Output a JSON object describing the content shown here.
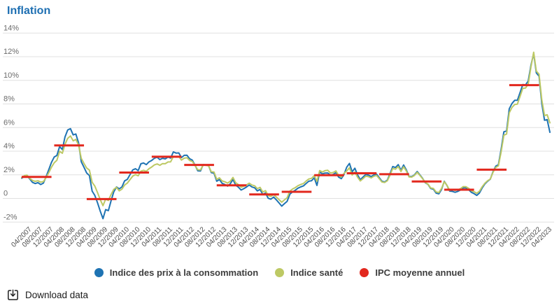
{
  "page": {
    "title": "Inflation"
  },
  "download": {
    "label": "Download data"
  },
  "colors": {
    "title": "#1e6fb2",
    "gridline": "#e0e0e0",
    "y_axis_text": "#6b6b6b",
    "x_axis_text": "#4d4d4d",
    "cpi_line": "#1e73b3",
    "health_line": "#bdc964",
    "annual_average_line": "#e2281e"
  },
  "chart_data": {
    "type": "line",
    "title": "Inflation",
    "x_frequency": "monthly",
    "x_start": "01/2007",
    "x_end": "04/2023",
    "grid": "horizontal",
    "legend_position": "bottom",
    "ylim": [
      -2,
      14
    ],
    "y_ticks": {
      "labels": [
        "14%",
        "12%",
        "10%",
        "8%",
        "6%",
        "4%",
        "2%",
        "0",
        "-2%"
      ],
      "values": [
        14,
        12,
        10,
        8,
        6,
        4,
        2,
        0,
        -2
      ]
    },
    "x_tick_labels": [
      "04/2007",
      "08/2007",
      "12/2007",
      "04/2008",
      "08/2008",
      "12/2008",
      "04/2009",
      "08/2009",
      "12/2009",
      "04/2010",
      "08/2010",
      "12/2010",
      "04/2011",
      "08/2011",
      "12/2011",
      "04/2012",
      "08/2012",
      "12/2012",
      "04/2013",
      "08/2013",
      "12/2013",
      "04/2014",
      "08/2014",
      "12/2014",
      "04/2015",
      "08/2015",
      "12/2015",
      "04/2016",
      "08/2016",
      "12/2016",
      "04/2017",
      "08/2017",
      "12/2017",
      "04/2018",
      "08/2018",
      "12/2018",
      "04/2019",
      "08/2019",
      "12/2019",
      "04/2020",
      "08/2020",
      "12/2020",
      "04/2021",
      "08/2021",
      "12/2021",
      "04/2022",
      "08/2022",
      "12/2022",
      "04/2023"
    ],
    "series": [
      {
        "name": "Indice des prix à la consommation",
        "type": "line",
        "color": "#1e73b3",
        "values": [
          1.71,
          1.87,
          1.93,
          1.65,
          1.36,
          1.26,
          1.34,
          1.18,
          1.3,
          1.83,
          2.44,
          3.06,
          3.51,
          3.64,
          4.39,
          4.14,
          5.21,
          5.8,
          5.91,
          5.38,
          5.46,
          4.71,
          3.1,
          2.63,
          2.15,
          1.94,
          0.62,
          0.26,
          -0.37,
          -1.08,
          -1.71,
          -0.94,
          -1.03,
          -0.19,
          0.56,
          0.97,
          0.81,
          0.98,
          1.49,
          1.62,
          2.02,
          2.41,
          2.52,
          2.35,
          2.94,
          3.0,
          2.86,
          3.1,
          3.22,
          3.4,
          3.49,
          3.29,
          3.4,
          3.35,
          3.5,
          3.42,
          3.94,
          3.84,
          3.85,
          3.46,
          3.65,
          3.66,
          3.36,
          3.24,
          2.81,
          2.34,
          2.32,
          2.86,
          2.84,
          2.77,
          2.18,
          2.14,
          1.46,
          1.6,
          1.28,
          1.18,
          1.05,
          1.24,
          1.61,
          1.12,
          0.96,
          0.71,
          0.83,
          0.97,
          1.14,
          0.97,
          0.9,
          0.64,
          0.76,
          0.34,
          0.47,
          0.02,
          -0.06,
          0.12,
          -0.11,
          -0.38,
          -0.65,
          -0.44,
          -0.24,
          0.36,
          0.56,
          0.7,
          0.87,
          0.98,
          1.06,
          1.27,
          1.46,
          1.5,
          1.74,
          1.1,
          2.24,
          2.08,
          2.15,
          2.16,
          1.97,
          2.03,
          2.18,
          1.81,
          1.68,
          2.03,
          2.65,
          2.97,
          2.25,
          2.56,
          1.99,
          1.59,
          1.81,
          2.02,
          1.98,
          1.85,
          1.99,
          2.06,
          1.76,
          1.45,
          1.39,
          1.56,
          2.12,
          2.7,
          2.62,
          2.86,
          2.39,
          2.83,
          2.42,
          1.86,
          1.85,
          2.0,
          2.28,
          1.99,
          1.7,
          1.33,
          1.19,
          0.84,
          0.78,
          0.45,
          0.39,
          0.76,
          1.45,
          1.1,
          0.62,
          0.6,
          0.52,
          0.6,
          0.71,
          0.9,
          0.9,
          0.74,
          0.52,
          0.41,
          0.26,
          0.46,
          0.89,
          1.23,
          1.46,
          1.63,
          2.27,
          2.73,
          2.86,
          4.16,
          5.64,
          5.71,
          7.59,
          8.04,
          8.31,
          8.31,
          8.97,
          9.65,
          9.62,
          9.94,
          11.27,
          12.27,
          10.63,
          10.35,
          8.05,
          6.62,
          6.67,
          5.6
        ]
      },
      {
        "name": "Indice santé",
        "type": "line",
        "color": "#bdc964",
        "values": [
          1.77,
          1.93,
          1.97,
          1.7,
          1.52,
          1.45,
          1.5,
          1.38,
          1.43,
          1.76,
          2.18,
          2.65,
          3.02,
          3.23,
          3.99,
          3.82,
          4.58,
          5.09,
          5.29,
          4.88,
          5.0,
          4.52,
          3.39,
          2.96,
          2.57,
          2.4,
          1.37,
          1.05,
          0.5,
          -0.1,
          -0.61,
          -0.06,
          -0.17,
          0.34,
          0.77,
          0.94,
          0.64,
          0.79,
          1.14,
          1.3,
          1.6,
          1.89,
          2.02,
          1.92,
          2.31,
          2.38,
          2.3,
          2.52,
          2.66,
          2.84,
          2.92,
          2.81,
          2.95,
          2.94,
          3.09,
          3.1,
          3.56,
          3.5,
          3.54,
          3.25,
          3.41,
          3.45,
          3.21,
          3.13,
          2.79,
          2.43,
          2.41,
          2.82,
          2.81,
          2.76,
          2.26,
          2.24,
          1.62,
          1.75,
          1.48,
          1.41,
          1.3,
          1.45,
          1.78,
          1.33,
          1.18,
          0.94,
          1.03,
          1.15,
          1.29,
          1.14,
          1.07,
          0.83,
          0.94,
          0.55,
          0.66,
          0.25,
          0.17,
          0.33,
          0.12,
          -0.1,
          -0.32,
          -0.12,
          0.06,
          0.62,
          0.8,
          0.92,
          1.08,
          1.18,
          1.26,
          1.47,
          1.65,
          1.7,
          1.94,
          1.45,
          2.36,
          2.24,
          2.35,
          2.38,
          2.15,
          2.2,
          2.33,
          1.95,
          1.82,
          2.12,
          2.32,
          2.6,
          1.98,
          2.24,
          1.8,
          1.48,
          1.68,
          1.88,
          1.85,
          1.74,
          1.88,
          1.95,
          1.68,
          1.39,
          1.35,
          1.5,
          2.0,
          2.54,
          2.48,
          2.7,
          2.28,
          2.68,
          2.32,
          1.82,
          1.81,
          1.95,
          2.21,
          1.95,
          1.68,
          1.35,
          1.21,
          0.89,
          0.85,
          0.55,
          0.5,
          0.85,
          1.42,
          1.1,
          0.69,
          0.74,
          0.68,
          0.74,
          0.83,
          1.0,
          0.99,
          0.86,
          0.66,
          0.57,
          0.44,
          0.61,
          0.99,
          1.29,
          1.5,
          1.64,
          2.21,
          2.63,
          2.76,
          3.94,
          5.35,
          5.45,
          7.25,
          7.71,
          7.95,
          7.98,
          8.65,
          9.33,
          9.35,
          9.68,
          11.12,
          12.38,
          10.78,
          10.52,
          8.35,
          7.02,
          7.08,
          6.4
        ]
      },
      {
        "name": "IPC moyenne annuel",
        "type": "annual-average-segments",
        "color": "#e2281e",
        "yearly": [
          {
            "year": 2007,
            "value": 1.82
          },
          {
            "year": 2008,
            "value": 4.49
          },
          {
            "year": 2009,
            "value": -0.05
          },
          {
            "year": 2010,
            "value": 2.19
          },
          {
            "year": 2011,
            "value": 3.53
          },
          {
            "year": 2012,
            "value": 2.84
          },
          {
            "year": 2013,
            "value": 1.11
          },
          {
            "year": 2014,
            "value": 0.34
          },
          {
            "year": 2015,
            "value": 0.56
          },
          {
            "year": 2016,
            "value": 1.97
          },
          {
            "year": 2017,
            "value": 2.13
          },
          {
            "year": 2018,
            "value": 2.05
          },
          {
            "year": 2019,
            "value": 1.44
          },
          {
            "year": 2020,
            "value": 0.74
          },
          {
            "year": 2021,
            "value": 2.44
          },
          {
            "year": 2022,
            "value": 9.59
          }
        ]
      }
    ]
  }
}
